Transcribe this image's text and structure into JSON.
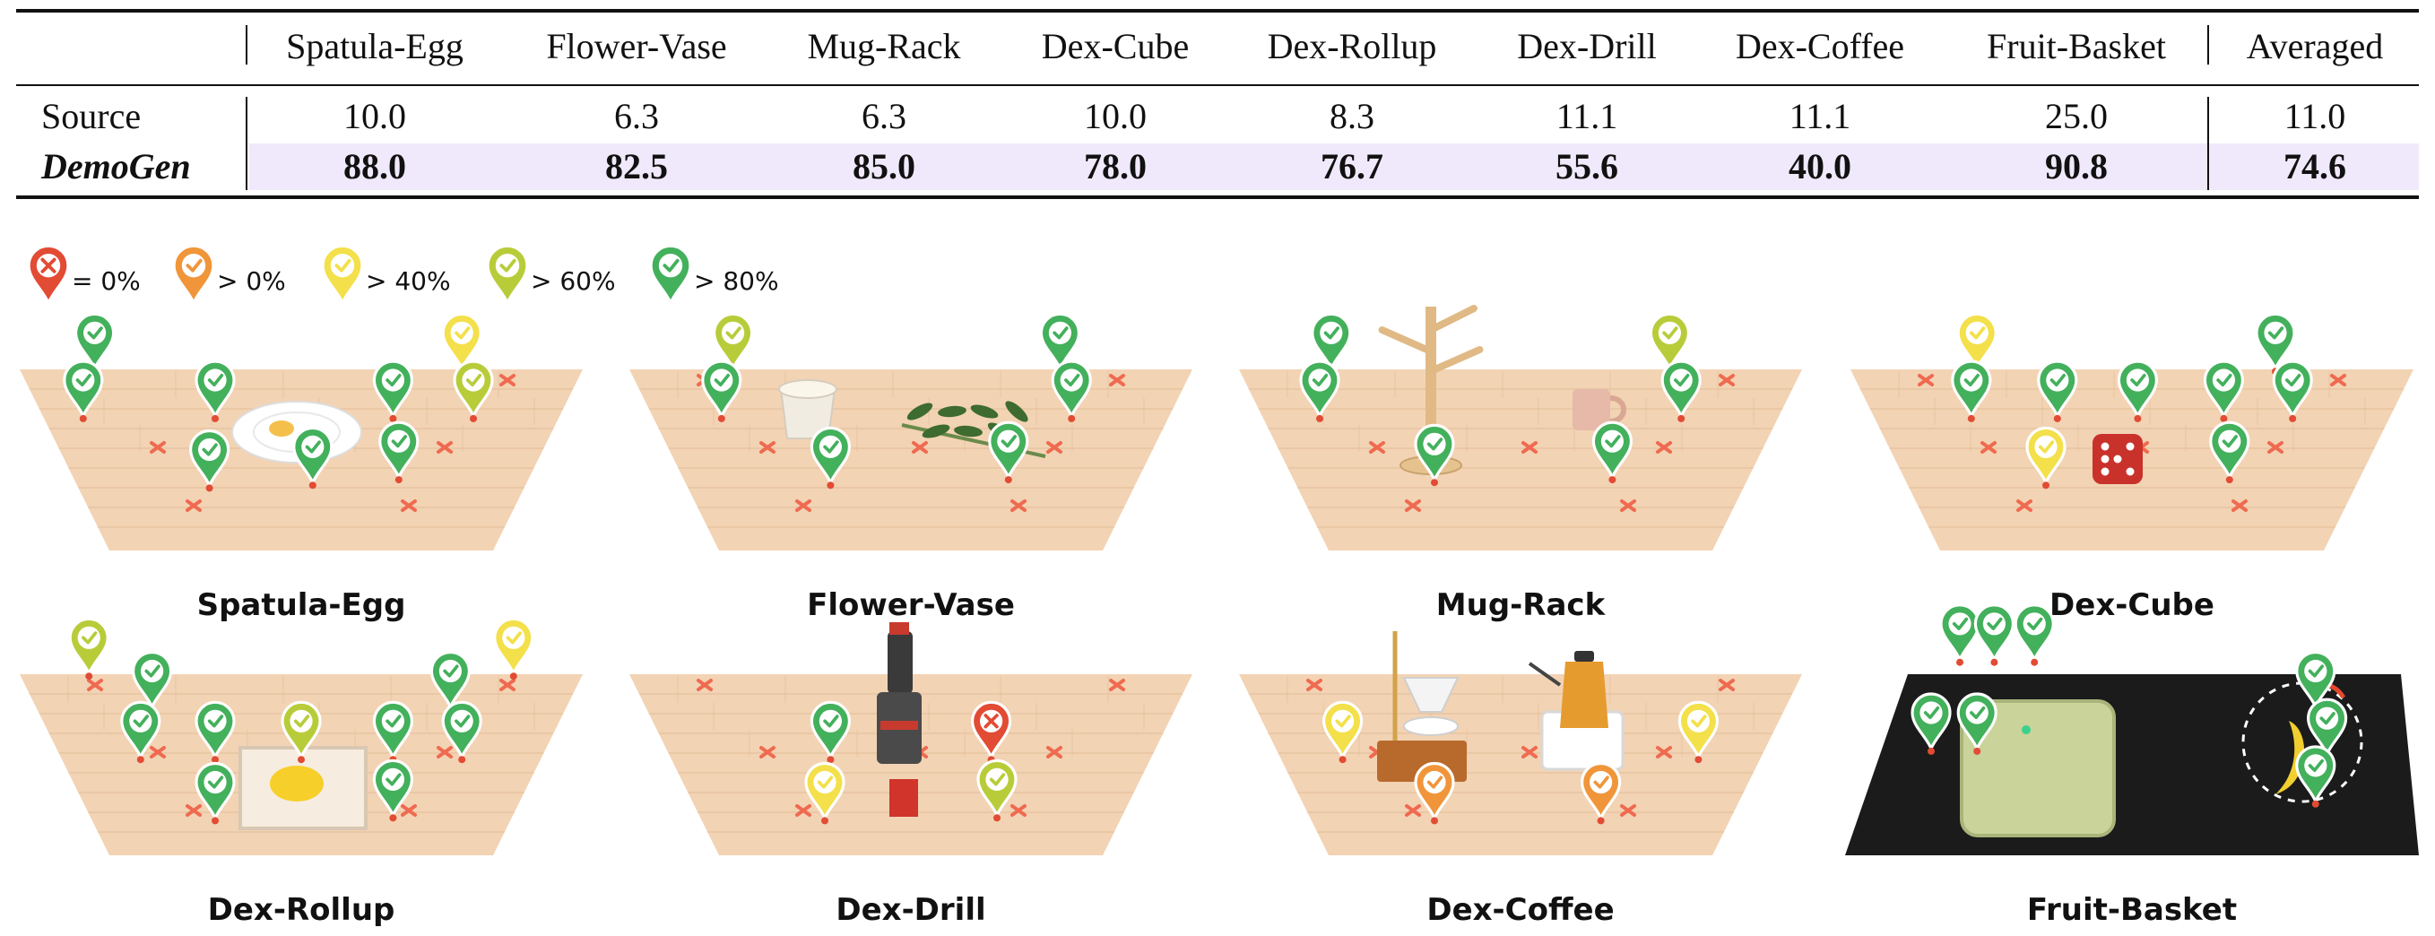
{
  "table": {
    "columns": [
      "Spatula-Egg",
      "Flower-Vase",
      "Mug-Rack",
      "Dex-Cube",
      "Dex-Rollup",
      "Dex-Drill",
      "Dex-Coffee",
      "Fruit-Basket",
      "Averaged"
    ],
    "rows": [
      {
        "label": "Source",
        "values": [
          "10.0",
          "6.3",
          "6.3",
          "10.0",
          "8.3",
          "11.1",
          "11.1",
          "25.0",
          "11.0"
        ]
      },
      {
        "label": "DemoGen",
        "values": [
          "88.0",
          "82.5",
          "85.0",
          "78.0",
          "76.7",
          "55.6",
          "40.0",
          "90.8",
          "74.6"
        ]
      }
    ]
  },
  "legend": [
    {
      "label": "= 0%",
      "color": "#e24b34",
      "icon": "cross-pin-icon"
    },
    {
      "label": "> 0%",
      "color": "#f0953a",
      "icon": "check-pin-icon"
    },
    {
      "label": "> 40%",
      "color": "#f3e04a",
      "icon": "check-pin-icon"
    },
    {
      "label": "> 60%",
      "color": "#b8cc3a",
      "icon": "check-pin-icon"
    },
    {
      "label": "> 80%",
      "color": "#43b05c",
      "icon": "check-pin-icon"
    }
  ],
  "panels": [
    {
      "name": "Spatula-Egg",
      "surface": "wood",
      "object": "plate-with-egg",
      "pins": [
        [
          "green",
          0.14,
          0.12
        ],
        [
          "green",
          0.12,
          0.29
        ],
        [
          "green",
          0.35,
          0.29
        ],
        [
          "green",
          0.34,
          0.54
        ],
        [
          "green",
          0.52,
          0.53
        ],
        [
          "green",
          0.66,
          0.29
        ],
        [
          "green",
          0.67,
          0.51
        ],
        [
          "yellow",
          0.78,
          0.12
        ],
        [
          "olive",
          0.8,
          0.29
        ]
      ]
    },
    {
      "name": "Flower-Vase",
      "surface": "wood",
      "object": "vase-and-flowers",
      "pins": [
        [
          "olive",
          0.19,
          0.12
        ],
        [
          "green",
          0.17,
          0.29
        ],
        [
          "green",
          0.36,
          0.53
        ],
        [
          "green",
          0.67,
          0.51
        ],
        [
          "green",
          0.76,
          0.12
        ],
        [
          "green",
          0.78,
          0.29
        ]
      ]
    },
    {
      "name": "Mug-Rack",
      "surface": "wood",
      "object": "mug-rack-and-mug",
      "pins": [
        [
          "green",
          0.17,
          0.12
        ],
        [
          "green",
          0.15,
          0.29
        ],
        [
          "green",
          0.35,
          0.52
        ],
        [
          "green",
          0.66,
          0.51
        ],
        [
          "olive",
          0.76,
          0.12
        ],
        [
          "green",
          0.78,
          0.29
        ]
      ]
    },
    {
      "name": "Dex-Cube",
      "surface": "wood",
      "object": "red-dice",
      "pins": [
        [
          "yellow",
          0.23,
          0.12
        ],
        [
          "green",
          0.22,
          0.29
        ],
        [
          "green",
          0.37,
          0.29
        ],
        [
          "yellow",
          0.35,
          0.53
        ],
        [
          "green",
          0.51,
          0.29
        ],
        [
          "green",
          0.66,
          0.29
        ],
        [
          "green",
          0.75,
          0.12
        ],
        [
          "green",
          0.78,
          0.29
        ],
        [
          "green",
          0.67,
          0.51
        ]
      ]
    },
    {
      "name": "Dex-Rollup",
      "surface": "wood",
      "object": "box-with-yellow-cloth",
      "pins": [
        [
          "olive",
          0.13,
          0.12
        ],
        [
          "green",
          0.24,
          0.24
        ],
        [
          "green",
          0.22,
          0.42
        ],
        [
          "green",
          0.35,
          0.42
        ],
        [
          "olive",
          0.5,
          0.42
        ],
        [
          "green",
          0.66,
          0.42
        ],
        [
          "green",
          0.35,
          0.64
        ],
        [
          "green",
          0.66,
          0.63
        ],
        [
          "green",
          0.76,
          0.24
        ],
        [
          "green",
          0.78,
          0.42
        ],
        [
          "yellow",
          0.87,
          0.12
        ]
      ]
    },
    {
      "name": "Dex-Drill",
      "surface": "wood",
      "object": "drill-on-red-block",
      "pins": [
        [
          "green",
          0.36,
          0.42
        ],
        [
          "yellow",
          0.35,
          0.64
        ],
        [
          "red",
          0.64,
          0.42
        ],
        [
          "olive",
          0.65,
          0.63
        ]
      ]
    },
    {
      "name": "Dex-Coffee",
      "surface": "wood",
      "object": "coffee-set",
      "pins": [
        [
          "yellow",
          0.19,
          0.42
        ],
        [
          "orange",
          0.35,
          0.64
        ],
        [
          "orange",
          0.64,
          0.64
        ],
        [
          "yellow",
          0.81,
          0.42
        ]
      ]
    },
    {
      "name": "Fruit-Basket",
      "surface": "black",
      "object": "basket-and-banana",
      "pins": [
        [
          "green",
          0.2,
          0.07
        ],
        [
          "green",
          0.26,
          0.07
        ],
        [
          "green",
          0.33,
          0.07
        ],
        [
          "green",
          0.15,
          0.39
        ],
        [
          "green",
          0.23,
          0.39
        ],
        [
          "green",
          0.82,
          0.24
        ],
        [
          "green",
          0.84,
          0.41
        ],
        [
          "green",
          0.82,
          0.58
        ]
      ]
    }
  ],
  "colors": {
    "green": "#43b05c",
    "olive": "#b8cc3a",
    "yellow": "#f3e04a",
    "orange": "#f0953a",
    "red": "#e24b34",
    "wood": "#f2d3b4",
    "highlight": "#efe9fb"
  }
}
